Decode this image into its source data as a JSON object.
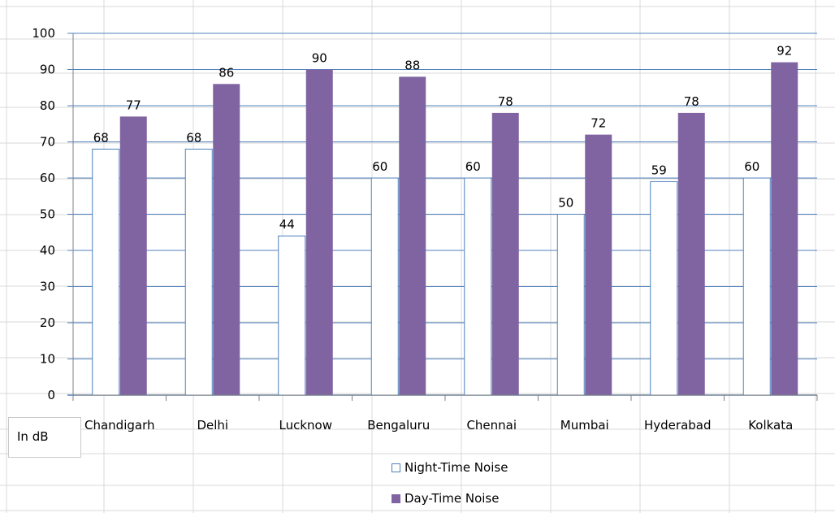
{
  "chart_data": {
    "type": "bar",
    "categories": [
      "Chandigarh",
      "Delhi",
      "Lucknow",
      "Bengaluru",
      "Chennai",
      "Mumbai",
      "Hyderabad",
      "Kolkata"
    ],
    "series": [
      {
        "name": "Night-Time Noise",
        "values": [
          68,
          68,
          44,
          60,
          60,
          50,
          59,
          60
        ],
        "color": "#ffffff",
        "border": "#4f81bd"
      },
      {
        "name": "Day-Time Noise",
        "values": [
          77,
          86,
          90,
          88,
          78,
          72,
          78,
          92
        ],
        "color": "#8064a2"
      }
    ],
    "unit_label": "In dB",
    "ylim": [
      0,
      100
    ],
    "yticks": [
      0,
      10,
      20,
      30,
      40,
      50,
      60,
      70,
      80,
      90,
      100
    ],
    "grid": true,
    "gridline_color": "#4f81bd",
    "data_labels": true,
    "legend_position": "bottom"
  }
}
